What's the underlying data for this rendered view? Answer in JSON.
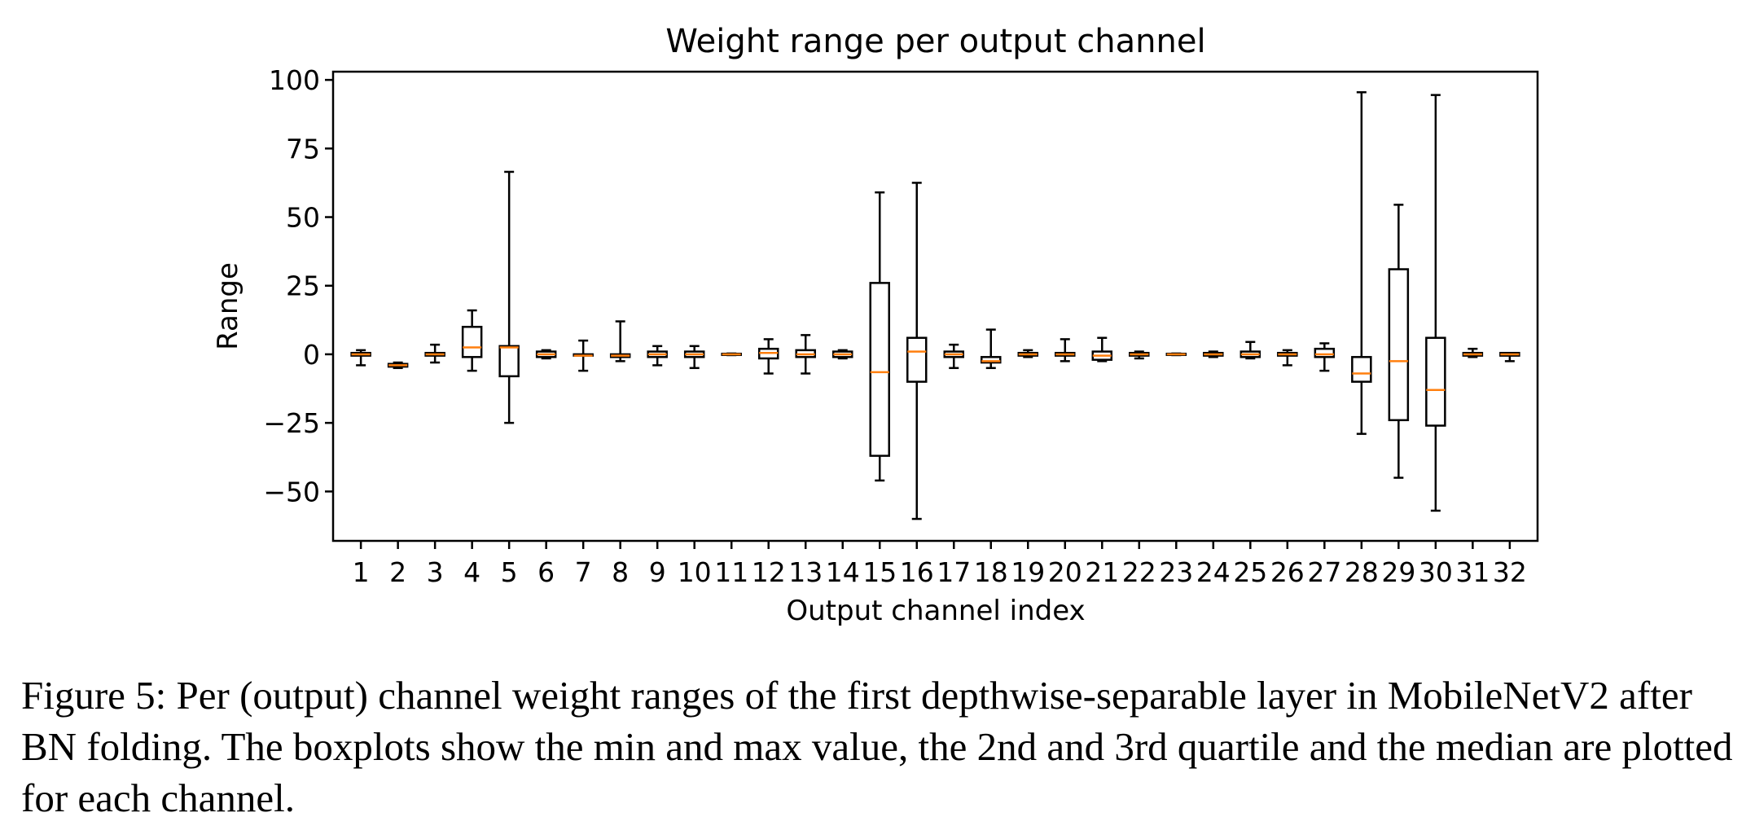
{
  "chart_data": {
    "type": "boxplot",
    "title": "Weight range per output channel",
    "xlabel": "Output channel index",
    "ylabel": "Range",
    "ylim": [
      -68,
      103
    ],
    "yticks": [
      -50,
      -25,
      0,
      25,
      50,
      75,
      100
    ],
    "ytick_labels": [
      "−50",
      "−25",
      "0",
      "25",
      "50",
      "75",
      "100"
    ],
    "grid": false,
    "colors": {
      "box": "#000000",
      "median": "#ff7f0e"
    },
    "categories": [
      "1",
      "2",
      "3",
      "4",
      "5",
      "6",
      "7",
      "8",
      "9",
      "10",
      "11",
      "12",
      "13",
      "14",
      "15",
      "16",
      "17",
      "18",
      "19",
      "20",
      "21",
      "22",
      "23",
      "24",
      "25",
      "26",
      "27",
      "28",
      "29",
      "30",
      "31",
      "32"
    ],
    "boxes": [
      {
        "min": -4,
        "q1": -0.5,
        "median": 0,
        "q3": 0.5,
        "max": 1.5
      },
      {
        "min": -5,
        "q1": -4.5,
        "median": -4,
        "q3": -3.5,
        "max": -3
      },
      {
        "min": -3,
        "q1": -0.5,
        "median": 0,
        "q3": 0.5,
        "max": 3.5
      },
      {
        "min": -6,
        "q1": -1,
        "median": 2.5,
        "q3": 10,
        "max": 16
      },
      {
        "min": -25,
        "q1": -8,
        "median": 2.5,
        "q3": 3,
        "max": 66.5
      },
      {
        "min": -1.5,
        "q1": -1,
        "median": 0,
        "q3": 1,
        "max": 1.5
      },
      {
        "min": -6,
        "q1": -0.5,
        "median": -0.5,
        "q3": 0,
        "max": 5
      },
      {
        "min": -2.5,
        "q1": -1,
        "median": -0.5,
        "q3": 0,
        "max": 12
      },
      {
        "min": -4,
        "q1": -1,
        "median": 0,
        "q3": 1,
        "max": 3
      },
      {
        "min": -5,
        "q1": -1,
        "median": 0,
        "q3": 1,
        "max": 3
      },
      {
        "min": -0.3,
        "q1": -0.2,
        "median": 0,
        "q3": 0.2,
        "max": 0.3
      },
      {
        "min": -7,
        "q1": -1.5,
        "median": 0.5,
        "q3": 2,
        "max": 5.5
      },
      {
        "min": -7,
        "q1": -1,
        "median": 0,
        "q3": 1.5,
        "max": 7
      },
      {
        "min": -1.5,
        "q1": -1,
        "median": 0,
        "q3": 1,
        "max": 1.5
      },
      {
        "min": -46,
        "q1": -37,
        "median": -6.5,
        "q3": 26,
        "max": 59
      },
      {
        "min": -60,
        "q1": -10,
        "median": 1,
        "q3": 6,
        "max": 62.5
      },
      {
        "min": -5,
        "q1": -1,
        "median": 0,
        "q3": 1,
        "max": 3.5
      },
      {
        "min": -5,
        "q1": -3,
        "median": -2.5,
        "q3": -1,
        "max": 9
      },
      {
        "min": -1,
        "q1": -0.5,
        "median": 0,
        "q3": 0.5,
        "max": 1.5
      },
      {
        "min": -2.5,
        "q1": -0.5,
        "median": 0,
        "q3": 0.5,
        "max": 5.5
      },
      {
        "min": -2.5,
        "q1": -2,
        "median": -0.5,
        "q3": 1,
        "max": 6
      },
      {
        "min": -1.5,
        "q1": -0.5,
        "median": 0,
        "q3": 0.5,
        "max": 1
      },
      {
        "min": -0.3,
        "q1": -0.2,
        "median": 0,
        "q3": 0.2,
        "max": 0.3
      },
      {
        "min": -1,
        "q1": -0.5,
        "median": 0,
        "q3": 0.5,
        "max": 1
      },
      {
        "min": -1.5,
        "q1": -1,
        "median": 0,
        "q3": 1,
        "max": 4.5
      },
      {
        "min": -4,
        "q1": -0.5,
        "median": 0,
        "q3": 0.5,
        "max": 1.5
      },
      {
        "min": -6,
        "q1": -1,
        "median": 0,
        "q3": 2,
        "max": 4
      },
      {
        "min": -29,
        "q1": -10,
        "median": -7,
        "q3": -1,
        "max": 95.5
      },
      {
        "min": -45,
        "q1": -24,
        "median": -2.5,
        "q3": 31,
        "max": 54.5
      },
      {
        "min": -57,
        "q1": -26,
        "median": -13,
        "q3": 6,
        "max": 94.5
      },
      {
        "min": -1,
        "q1": -0.5,
        "median": 0,
        "q3": 0.5,
        "max": 2
      },
      {
        "min": -2.5,
        "q1": -0.5,
        "median": 0,
        "q3": 0.5,
        "max": 0.5
      }
    ]
  },
  "caption": {
    "text": "Figure 5: Per (output) channel weight ranges of the first depthwise-separable layer in MobileNetV2 after BN folding. The boxplots show the min and max value, the 2nd and 3rd quartile and the median are plotted for each channel."
  }
}
